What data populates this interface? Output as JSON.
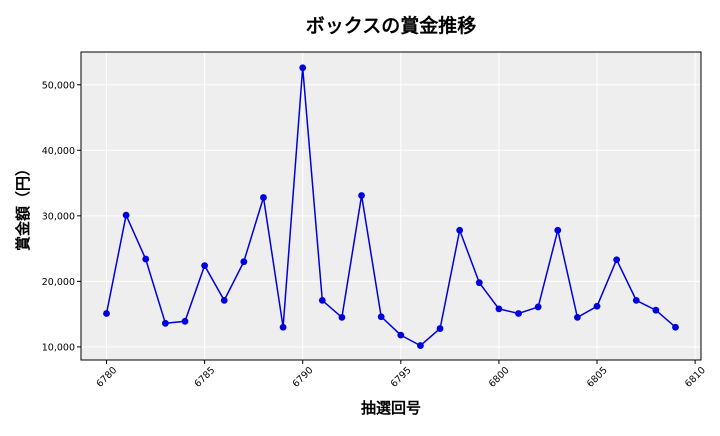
{
  "chart_data": {
    "type": "line",
    "title": "ボックスの賞金推移",
    "xlabel": "抽選回号",
    "ylabel": "賞金額（円）",
    "xlim": [
      6778.7,
      6810.3
    ],
    "ylim": [
      8000,
      55000
    ],
    "x_ticks": [
      6780,
      6785,
      6790,
      6795,
      6800,
      6805,
      6810
    ],
    "y_ticks": [
      10000,
      20000,
      30000,
      40000,
      50000
    ],
    "x_tick_labels": [
      "6780",
      "6785",
      "6790",
      "6795",
      "6800",
      "6805",
      "6810"
    ],
    "y_tick_labels": [
      "10,000",
      "20,000",
      "30,000",
      "40,000",
      "50,000"
    ],
    "grid": true,
    "background": "#eeeeee",
    "series_color": "#0000dd",
    "x": [
      6780,
      6781,
      6782,
      6783,
      6784,
      6785,
      6786,
      6787,
      6788,
      6789,
      6790,
      6791,
      6792,
      6793,
      6794,
      6795,
      6796,
      6797,
      6798,
      6799,
      6800,
      6801,
      6802,
      6803,
      6804,
      6805,
      6806,
      6807,
      6808,
      6809
    ],
    "values": [
      15100,
      30100,
      23400,
      13600,
      13900,
      22400,
      17100,
      23000,
      32800,
      13000,
      52600,
      17100,
      14500,
      33100,
      14600,
      11800,
      10200,
      12800,
      27800,
      19800,
      15800,
      15100,
      16100,
      27800,
      14500,
      16200,
      23300,
      17100,
      15600,
      13000
    ]
  }
}
